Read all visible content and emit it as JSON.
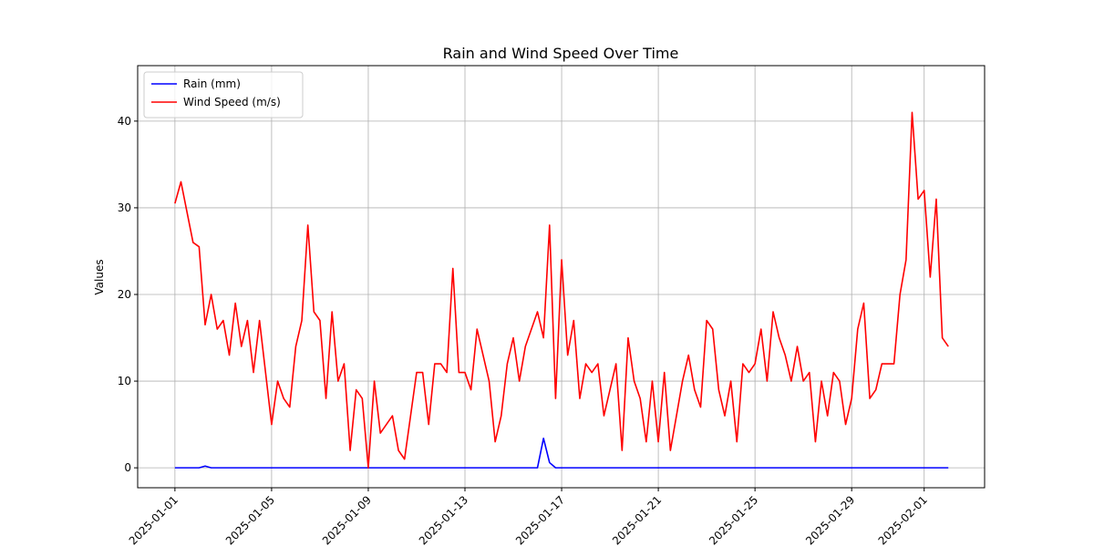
{
  "chart_data": {
    "type": "line",
    "title": "Rain and Wind Speed Over Time",
    "ylabel": "Values",
    "x": [
      "2025-01-01 00:00",
      "2025-01-01 06:00",
      "2025-01-01 12:00",
      "2025-01-01 18:00",
      "2025-01-02 00:00",
      "2025-01-02 06:00",
      "2025-01-02 12:00",
      "2025-01-02 18:00",
      "2025-01-03 00:00",
      "2025-01-03 06:00",
      "2025-01-03 12:00",
      "2025-01-03 18:00",
      "2025-01-04 00:00",
      "2025-01-04 06:00",
      "2025-01-04 12:00",
      "2025-01-04 18:00",
      "2025-01-05 00:00",
      "2025-01-05 06:00",
      "2025-01-05 12:00",
      "2025-01-05 18:00",
      "2025-01-06 00:00",
      "2025-01-06 06:00",
      "2025-01-06 12:00",
      "2025-01-06 18:00",
      "2025-01-07 00:00",
      "2025-01-07 06:00",
      "2025-01-07 12:00",
      "2025-01-07 18:00",
      "2025-01-08 00:00",
      "2025-01-08 06:00",
      "2025-01-08 12:00",
      "2025-01-08 18:00",
      "2025-01-09 00:00",
      "2025-01-09 06:00",
      "2025-01-09 12:00",
      "2025-01-09 18:00",
      "2025-01-10 00:00",
      "2025-01-10 06:00",
      "2025-01-10 12:00",
      "2025-01-10 18:00",
      "2025-01-11 00:00",
      "2025-01-11 06:00",
      "2025-01-11 12:00",
      "2025-01-11 18:00",
      "2025-01-12 00:00",
      "2025-01-12 06:00",
      "2025-01-12 12:00",
      "2025-01-12 18:00",
      "2025-01-13 00:00",
      "2025-01-13 06:00",
      "2025-01-13 12:00",
      "2025-01-13 18:00",
      "2025-01-14 00:00",
      "2025-01-14 06:00",
      "2025-01-14 12:00",
      "2025-01-14 18:00",
      "2025-01-15 00:00",
      "2025-01-15 06:00",
      "2025-01-15 12:00",
      "2025-01-15 18:00",
      "2025-01-16 00:00",
      "2025-01-16 06:00",
      "2025-01-16 12:00",
      "2025-01-16 18:00",
      "2025-01-17 00:00",
      "2025-01-17 06:00",
      "2025-01-17 12:00",
      "2025-01-17 18:00",
      "2025-01-18 00:00",
      "2025-01-18 06:00",
      "2025-01-18 12:00",
      "2025-01-18 18:00",
      "2025-01-19 00:00",
      "2025-01-19 06:00",
      "2025-01-19 12:00",
      "2025-01-19 18:00",
      "2025-01-20 00:00",
      "2025-01-20 06:00",
      "2025-01-20 12:00",
      "2025-01-20 18:00",
      "2025-01-21 00:00",
      "2025-01-21 06:00",
      "2025-01-21 12:00",
      "2025-01-21 18:00",
      "2025-01-22 00:00",
      "2025-01-22 06:00",
      "2025-01-22 12:00",
      "2025-01-22 18:00",
      "2025-01-23 00:00",
      "2025-01-23 06:00",
      "2025-01-23 12:00",
      "2025-01-23 18:00",
      "2025-01-24 00:00",
      "2025-01-24 06:00",
      "2025-01-24 12:00",
      "2025-01-24 18:00",
      "2025-01-25 00:00",
      "2025-01-25 06:00",
      "2025-01-25 12:00",
      "2025-01-25 18:00",
      "2025-01-26 00:00",
      "2025-01-26 06:00",
      "2025-01-26 12:00",
      "2025-01-26 18:00",
      "2025-01-27 00:00",
      "2025-01-27 06:00",
      "2025-01-27 12:00",
      "2025-01-27 18:00",
      "2025-01-28 00:00",
      "2025-01-28 06:00",
      "2025-01-28 12:00",
      "2025-01-28 18:00",
      "2025-01-29 00:00",
      "2025-01-29 06:00",
      "2025-01-29 12:00",
      "2025-01-29 18:00",
      "2025-01-30 00:00",
      "2025-01-30 06:00",
      "2025-01-30 12:00",
      "2025-01-30 18:00",
      "2025-01-31 00:00",
      "2025-01-31 06:00",
      "2025-01-31 12:00",
      "2025-01-31 18:00",
      "2025-02-01 00:00",
      "2025-02-01 06:00",
      "2025-02-01 12:00",
      "2025-02-01 18:00",
      "2025-02-02 00:00"
    ],
    "series": [
      {
        "name": "Rain (mm)",
        "color": "#0000ff",
        "values": [
          0,
          0,
          0,
          0,
          0,
          0.2,
          0,
          0,
          0,
          0,
          0,
          0,
          0,
          0,
          0,
          0,
          0,
          0,
          0,
          0,
          0,
          0,
          0,
          0,
          0,
          0,
          0,
          0,
          0,
          0,
          0,
          0,
          0,
          0,
          0,
          0,
          0,
          0,
          0,
          0,
          0,
          0,
          0,
          0,
          0,
          0,
          0,
          0,
          0,
          0,
          0,
          0,
          0,
          0,
          0,
          0,
          0,
          0,
          0,
          0,
          0,
          3.4,
          0.6,
          0,
          0,
          0,
          0,
          0,
          0,
          0,
          0,
          0,
          0,
          0,
          0,
          0,
          0,
          0,
          0,
          0,
          0,
          0,
          0,
          0,
          0,
          0,
          0,
          0,
          0,
          0,
          0,
          0,
          0,
          0,
          0,
          0,
          0,
          0,
          0,
          0,
          0,
          0,
          0,
          0,
          0,
          0,
          0,
          0,
          0,
          0,
          0,
          0,
          0,
          0,
          0,
          0,
          0,
          0,
          0,
          0,
          0,
          0,
          0,
          0,
          0,
          0,
          0,
          0,
          0
        ]
      },
      {
        "name": "Wind Speed (m/s)",
        "color": "#ff0000",
        "values": [
          30.5,
          33,
          29.5,
          26,
          25.5,
          16.5,
          20,
          16,
          17,
          13,
          19,
          14,
          17,
          11,
          17,
          11,
          5,
          10,
          8,
          7,
          14,
          17,
          28,
          18,
          17,
          8,
          18,
          10,
          12,
          2,
          9,
          8,
          0,
          10,
          4,
          5,
          6,
          2,
          1,
          6,
          11,
          11,
          5,
          12,
          12,
          11,
          23,
          11,
          11,
          9,
          16,
          13,
          10,
          3,
          6,
          12,
          15,
          10,
          14,
          16,
          18,
          15,
          28,
          8,
          24,
          13,
          17,
          8,
          12,
          11,
          12,
          6,
          9,
          12,
          2,
          15,
          10,
          8,
          3,
          10,
          3,
          11,
          2,
          6,
          10,
          13,
          9,
          7,
          17,
          16,
          9,
          6,
          10,
          3,
          12,
          11,
          12,
          16,
          10,
          18,
          15,
          13,
          10,
          14,
          10,
          11,
          3,
          10,
          6,
          11,
          10,
          5,
          8,
          16,
          19,
          8,
          9,
          12,
          12,
          12,
          20,
          24,
          41,
          31,
          32,
          22,
          31,
          15,
          14
        ]
      }
    ],
    "xlim": [
      "2024-12-30 11:00",
      "2025-02-03 12:00"
    ],
    "xticks": [
      "2025-01-01",
      "2025-01-05",
      "2025-01-09",
      "2025-01-13",
      "2025-01-17",
      "2025-01-21",
      "2025-01-25",
      "2025-01-29",
      "2025-02-01"
    ],
    "ylim": [
      -2.3,
      46.4
    ],
    "yticks": [
      0,
      10,
      20,
      30,
      40
    ],
    "grid": true,
    "legend": "upper left"
  }
}
